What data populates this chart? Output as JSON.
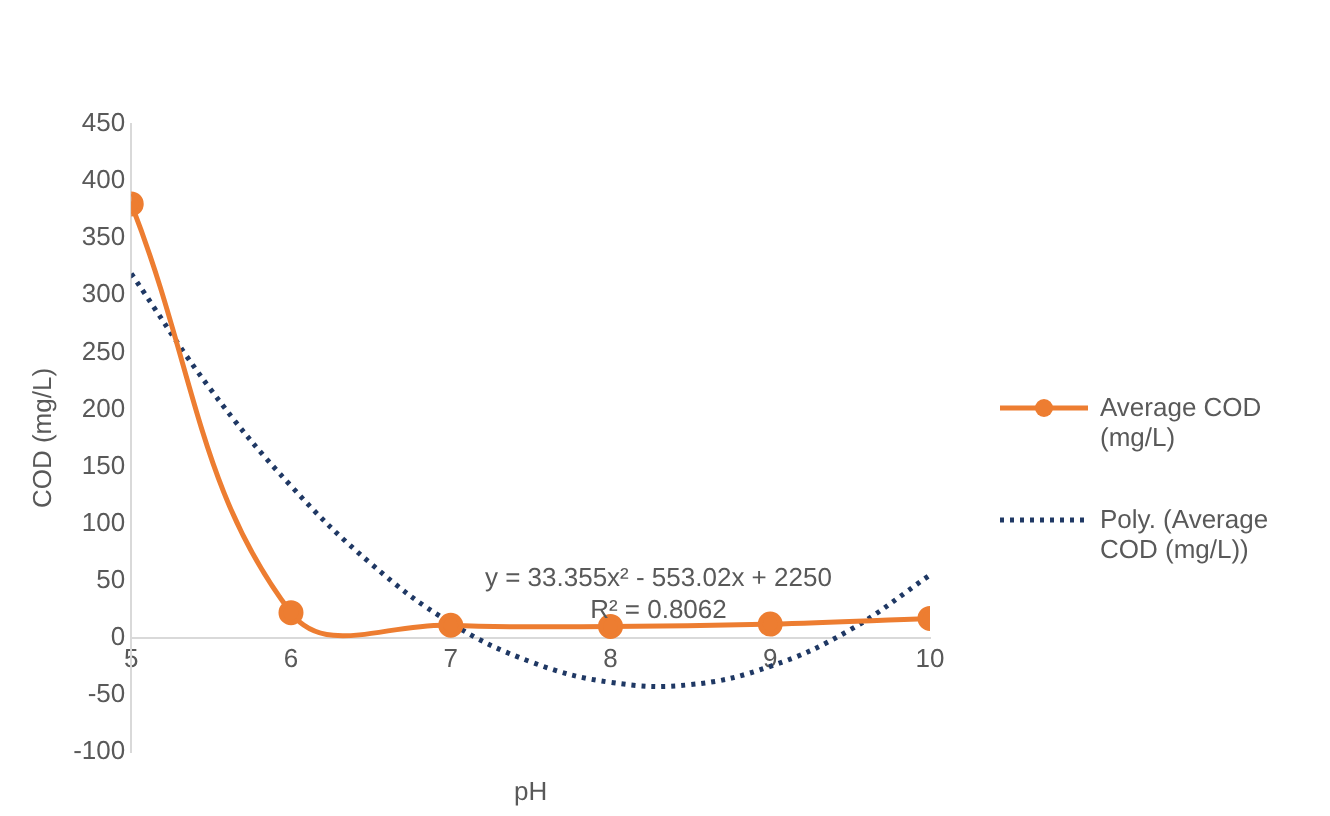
{
  "chart_data": {
    "type": "line",
    "xlabel": "pH",
    "ylabel": "COD (mg/L)",
    "xlim": [
      5,
      10
    ],
    "xticks": [
      5,
      6,
      7,
      8,
      9,
      10
    ],
    "ylim": [
      -100,
      450
    ],
    "yticks": [
      -100,
      -50,
      0,
      50,
      100,
      150,
      200,
      250,
      300,
      350,
      400,
      450
    ],
    "grid": false,
    "legend": "right",
    "marker": "circle",
    "series": [
      {
        "name": "Average COD (mg/L)",
        "color": "#ed7d31",
        "x": [
          5,
          6,
          7,
          8,
          9,
          10
        ],
        "values": [
          380,
          22,
          11,
          10,
          12,
          17
        ],
        "line_style": "solid"
      },
      {
        "name": "Poly. (Average COD (mg/L))",
        "color": "#1f3864",
        "x": [
          5,
          5.5,
          6,
          6.5,
          7,
          7.5,
          8,
          8.5,
          9,
          9.5,
          10
        ],
        "values": [
          319,
          217,
          133,
          65,
          13,
          -21,
          -39,
          -41,
          -25,
          7,
          55
        ],
        "marker": "none",
        "line_style": "dotted"
      }
    ],
    "annotations": [
      "y = 33.355x² - 553.02x + 2250",
      "R² = 0.8062"
    ]
  }
}
